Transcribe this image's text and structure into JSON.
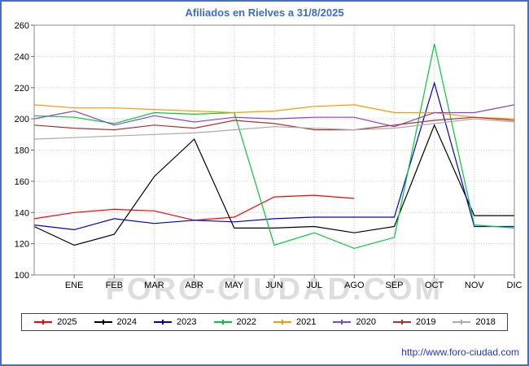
{
  "page": {
    "title": "Afiliados en Rielves a 31/8/2025",
    "watermark": "FORO-CIUDAD.COM",
    "footer_url": "http://www.foro-ciudad.com",
    "title_color": "#3c6cc8",
    "border_color": "#4a6fb5"
  },
  "chart_data": {
    "type": "line",
    "title": "Afiliados en Rielves a 31/8/2025",
    "categories": [
      "ENE",
      "FEB",
      "MAR",
      "ABR",
      "MAY",
      "JUN",
      "JUL",
      "AGO",
      "SEP",
      "OCT",
      "NOV",
      "DIC"
    ],
    "ylim": [
      100,
      260
    ],
    "ytick_step": 20,
    "grid": true,
    "grid_style": "dotted",
    "legend_position": "bottom",
    "layout_note": "13 points per series: index 0 sits on the left plot edge, indices 1-12 on the ENE-DIC ticks",
    "series": [
      {
        "name": "2025",
        "color": "#ff0000",
        "values": [
          136,
          140,
          142,
          141,
          135,
          137,
          150,
          151,
          149,
          null,
          null,
          null,
          null
        ]
      },
      {
        "name": "2024",
        "color": "#000000",
        "values": [
          131,
          119,
          126,
          163,
          187,
          130,
          130,
          131,
          127,
          131,
          196,
          138,
          138
        ]
      },
      {
        "name": "2023",
        "color": "#0000cc",
        "values": [
          132,
          129,
          136,
          133,
          135,
          134,
          136,
          137,
          137,
          137,
          223,
          131,
          131
        ]
      },
      {
        "name": "2022",
        "color": "#00cc33",
        "values": [
          202,
          201,
          197,
          204,
          203,
          204,
          119,
          127,
          117,
          124,
          248,
          132,
          130
        ]
      },
      {
        "name": "2021",
        "color": "#ff9900",
        "values": [
          209,
          207,
          207,
          206,
          205,
          204,
          205,
          208,
          209,
          204,
          204,
          201,
          200
        ]
      },
      {
        "name": "2020",
        "color": "#8844cc",
        "values": [
          200,
          205,
          196,
          202,
          198,
          201,
          200,
          201,
          201,
          195,
          204,
          204,
          209
        ]
      },
      {
        "name": "2019",
        "color": "#b03030",
        "values": [
          196,
          194,
          193,
          196,
          194,
          199,
          197,
          193,
          193,
          196,
          199,
          201,
          199
        ]
      },
      {
        "name": "2018",
        "color": "#aaaaaa",
        "values": [
          187,
          188,
          189,
          190,
          191,
          193,
          195,
          194,
          193,
          194,
          197,
          200,
          198
        ]
      }
    ]
  }
}
